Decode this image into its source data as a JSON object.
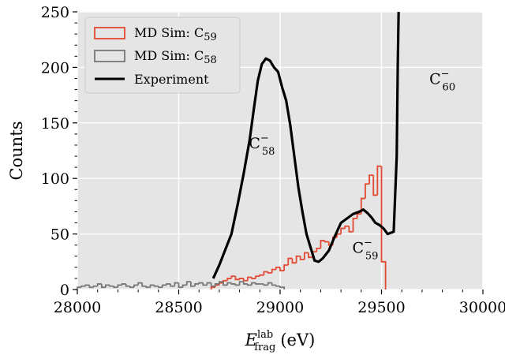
{
  "chart_data": {
    "type": "line",
    "xlabel": "E",
    "xlabel_sup": "lab",
    "xlabel_sub": "frag",
    "xlabel_unit": "(eV)",
    "ylabel": "Counts",
    "xlim": [
      28000,
      30000
    ],
    "ylim": [
      0,
      250
    ],
    "xticks": [
      28000,
      28500,
      29000,
      29500,
      30000
    ],
    "yticks": [
      0,
      50,
      100,
      150,
      200,
      250
    ],
    "grid": true,
    "legend_position": "top-left",
    "legend": [
      {
        "label": "MD Sim: C",
        "sub": "59",
        "style": "step-outline",
        "color": "#e24a33"
      },
      {
        "label": "MD Sim: C",
        "sub": "58",
        "style": "step-outline",
        "color": "#777777"
      },
      {
        "label": "Experiment",
        "style": "line",
        "color": "#000000"
      }
    ],
    "annotations": [
      {
        "base": "C",
        "sup": "−",
        "sub": "58",
        "x": 28910,
        "y": 127
      },
      {
        "base": "C",
        "sup": "−",
        "sub": "59",
        "x": 29420,
        "y": 33
      },
      {
        "base": "C",
        "sup": "−",
        "sub": "60",
        "x": 29800,
        "y": 185
      }
    ],
    "series": [
      {
        "name": "MD Sim: C59",
        "style": "step",
        "color": "#e24a33",
        "bin_width": 20,
        "x": [
          28660,
          28680,
          28700,
          28720,
          28740,
          28760,
          28780,
          28800,
          28820,
          28840,
          28860,
          28880,
          28900,
          28920,
          28940,
          28960,
          28980,
          29000,
          29020,
          29040,
          29060,
          29080,
          29100,
          29120,
          29140,
          29160,
          29180,
          29200,
          29220,
          29240,
          29260,
          29280,
          29300,
          29320,
          29340,
          29360,
          29380,
          29400,
          29420,
          29440,
          29460,
          29480,
          29500
        ],
        "values": [
          2,
          4,
          6,
          8,
          10,
          12,
          9,
          10,
          8,
          11,
          10,
          12,
          13,
          16,
          15,
          18,
          20,
          17,
          22,
          28,
          24,
          30,
          27,
          33,
          29,
          34,
          37,
          44,
          43,
          40,
          47,
          50,
          55,
          57,
          52,
          64,
          68,
          82,
          95,
          103,
          85,
          111,
          25
        ]
      },
      {
        "name": "MD Sim: C58",
        "style": "step",
        "color": "#777777",
        "bin_width": 20,
        "x": [
          28000,
          28020,
          28040,
          28060,
          28080,
          28100,
          28120,
          28140,
          28160,
          28180,
          28200,
          28220,
          28240,
          28260,
          28280,
          28300,
          28320,
          28340,
          28360,
          28380,
          28400,
          28420,
          28440,
          28460,
          28480,
          28500,
          28520,
          28540,
          28560,
          28580,
          28600,
          28620,
          28640,
          28660,
          28680,
          28700,
          28720,
          28740,
          28760,
          28780,
          28800,
          28820,
          28840,
          28860,
          28880,
          28900,
          28920,
          28940,
          28960,
          28980,
          29000
        ],
        "values": [
          2,
          3,
          4,
          2,
          3,
          5,
          2,
          4,
          3,
          2,
          4,
          5,
          3,
          2,
          4,
          6,
          3,
          2,
          4,
          3,
          2,
          4,
          5,
          3,
          6,
          2,
          4,
          7,
          3,
          5,
          6,
          4,
          6,
          3,
          5,
          7,
          4,
          6,
          5,
          4,
          7,
          5,
          4,
          6,
          5,
          5,
          4,
          6,
          4,
          3,
          2
        ]
      },
      {
        "name": "Experiment",
        "style": "line",
        "color": "#000000",
        "x": [
          28670,
          28700,
          28730,
          28760,
          28790,
          28820,
          28850,
          28870,
          28890,
          28910,
          28930,
          28950,
          28970,
          28990,
          29010,
          29030,
          29050,
          29070,
          29090,
          29110,
          29130,
          29150,
          29170,
          29190,
          29210,
          29240,
          29270,
          29300,
          29330,
          29360,
          29390,
          29410,
          29430,
          29450,
          29470,
          29490,
          29510,
          29530,
          29560,
          29575,
          29580,
          29585
        ],
        "values": [
          10,
          22,
          36,
          50,
          76,
          104,
          135,
          162,
          188,
          203,
          208,
          206,
          200,
          196,
          182,
          170,
          148,
          120,
          92,
          70,
          50,
          38,
          26,
          25,
          28,
          35,
          48,
          60,
          64,
          68,
          70,
          72,
          69,
          65,
          60,
          58,
          55,
          50,
          52,
          120,
          200,
          258
        ]
      }
    ]
  }
}
